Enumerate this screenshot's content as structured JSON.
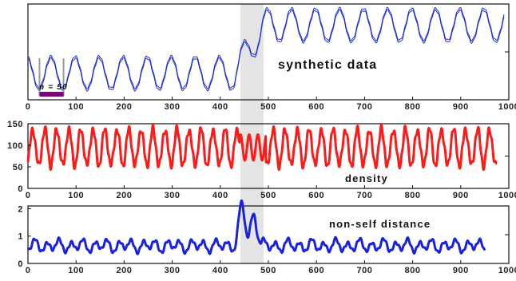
{
  "colors": {
    "panel1_line": "#2233cc",
    "panel2_line": "#ff1a1a",
    "panel3_line": "#1a22dd",
    "highlight": "#e4e4e4",
    "window_bar": "#800080",
    "window_bracket": "#9a9a9a"
  },
  "chart_data": [
    {
      "type": "line",
      "id": "synthetic",
      "annotation": "synthetic data",
      "window_label": "n = 50",
      "window": [
        24,
        74
      ],
      "highlight": [
        442,
        490
      ],
      "xlim": [
        0,
        1000
      ],
      "x_ticks": [
        0,
        100,
        200,
        300,
        400,
        500,
        600,
        700,
        800,
        900,
        1000
      ],
      "shift_start": 430,
      "shift_end": 490,
      "period": 50,
      "x_end": 990,
      "series": [
        {
          "values_desc": "",
          "amplitude": 1.0,
          "low_level": 0.0,
          "high_level": 3.0
        }
      ]
    },
    {
      "type": "line",
      "id": "density",
      "annotation": "density",
      "highlight": [
        442,
        490
      ],
      "xlim": [
        0,
        1000
      ],
      "ylim": [
        0,
        150
      ],
      "y_ticks": [
        0,
        50,
        100,
        150
      ],
      "x_ticks": [
        0,
        100,
        200,
        300,
        400,
        500,
        600,
        700,
        800,
        900,
        1000
      ],
      "x_end": 975,
      "period": 25,
      "center": 95,
      "amplitude": 42
    },
    {
      "type": "line",
      "id": "non-self-distance",
      "annotation": "non-self distance",
      "highlight": [
        442,
        490
      ],
      "xlim": [
        0,
        1000
      ],
      "ylim": [
        0,
        2.1
      ],
      "y_ticks": [
        0,
        1,
        2
      ],
      "x_ticks": [
        0,
        100,
        200,
        300,
        400,
        500,
        600,
        700,
        800,
        900,
        1000
      ],
      "x_end": 950,
      "baseline": 0.65,
      "amplitude": 0.18,
      "peaks": [
        {
          "x": 445,
          "y": 2.1
        },
        {
          "x": 470,
          "y": 1.8
        }
      ]
    }
  ]
}
